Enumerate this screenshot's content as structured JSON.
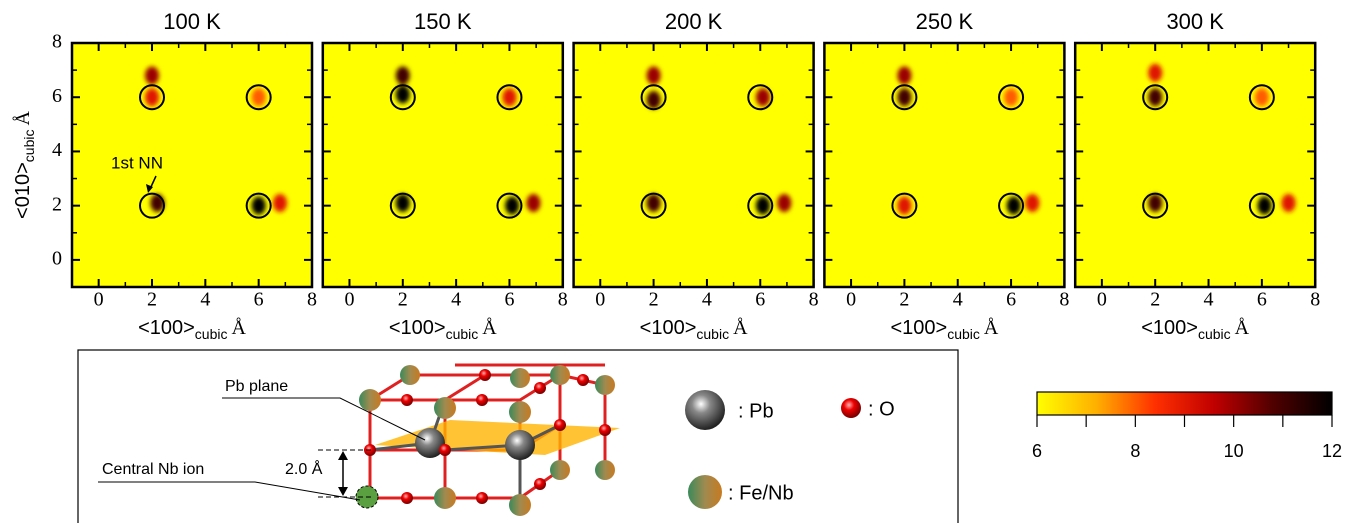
{
  "chart_data": {
    "type": "heatmap",
    "xlim": [
      -1,
      8
    ],
    "ylim": [
      -1,
      8
    ],
    "xticks": [
      0,
      2,
      4,
      6,
      8
    ],
    "yticks": [
      0,
      2,
      4,
      6,
      8
    ],
    "xlabel": {
      "main": "<100>",
      "sub": "cubic",
      "unit": "Å"
    },
    "ylabel": {
      "main": "<010>",
      "sub": "cubic",
      "unit": "Å"
    },
    "annotation": "1st NN",
    "colormap": [
      "#ffff00",
      "#ffb000",
      "#ff3000",
      "#c00000",
      "#500000",
      "#000000"
    ],
    "circles": {
      "x": [
        2,
        2,
        6,
        6
      ],
      "y": [
        2,
        6,
        2,
        6
      ]
    },
    "panels": [
      {
        "title": "100 K",
        "spots": {
          "x": [
            2.0,
            2.0,
            6.0,
            2.2,
            6.0,
            6.8
          ],
          "y": [
            6.8,
            6.0,
            6.0,
            2.1,
            2.0,
            2.1
          ],
          "values": [
            10,
            9,
            8,
            11,
            12,
            9
          ]
        }
      },
      {
        "title": "150 K",
        "spots": {
          "x": [
            2.0,
            2.0,
            6.0,
            2.0,
            6.1,
            6.9
          ],
          "y": [
            6.8,
            6.1,
            6.0,
            2.1,
            2.0,
            2.1
          ],
          "values": [
            11,
            12,
            9,
            12,
            12,
            10
          ]
        }
      },
      {
        "title": "200 K",
        "spots": {
          "x": [
            2.0,
            2.0,
            6.1,
            2.0,
            6.1,
            6.9
          ],
          "y": [
            6.8,
            5.9,
            6.0,
            2.1,
            2.0,
            2.1
          ],
          "values": [
            10,
            11,
            10,
            11,
            12,
            10
          ]
        }
      },
      {
        "title": "250 K",
        "spots": {
          "x": [
            2.0,
            2.0,
            6.0,
            2.0,
            6.1,
            6.8
          ],
          "y": [
            6.8,
            6.0,
            6.0,
            2.0,
            2.0,
            2.1
          ],
          "values": [
            10,
            11,
            8,
            9,
            12,
            9
          ]
        }
      },
      {
        "title": "300 K",
        "spots": {
          "x": [
            2.0,
            2.0,
            6.0,
            2.0,
            6.1,
            7.0
          ],
          "y": [
            6.9,
            6.0,
            6.0,
            2.1,
            2.0,
            2.1
          ],
          "values": [
            9,
            11,
            8,
            11,
            12,
            9
          ]
        }
      }
    ],
    "colorbar": {
      "lim": [
        6,
        12
      ],
      "ticks": [
        6,
        8,
        10,
        12
      ]
    }
  },
  "diagram": {
    "pb_plane": "Pb plane",
    "central_ion": "Central Nb ion",
    "distance": "2.0 Å",
    "legend": {
      "pb": ": Pb",
      "o": ": O",
      "fenb": ": Fe/Nb"
    }
  }
}
